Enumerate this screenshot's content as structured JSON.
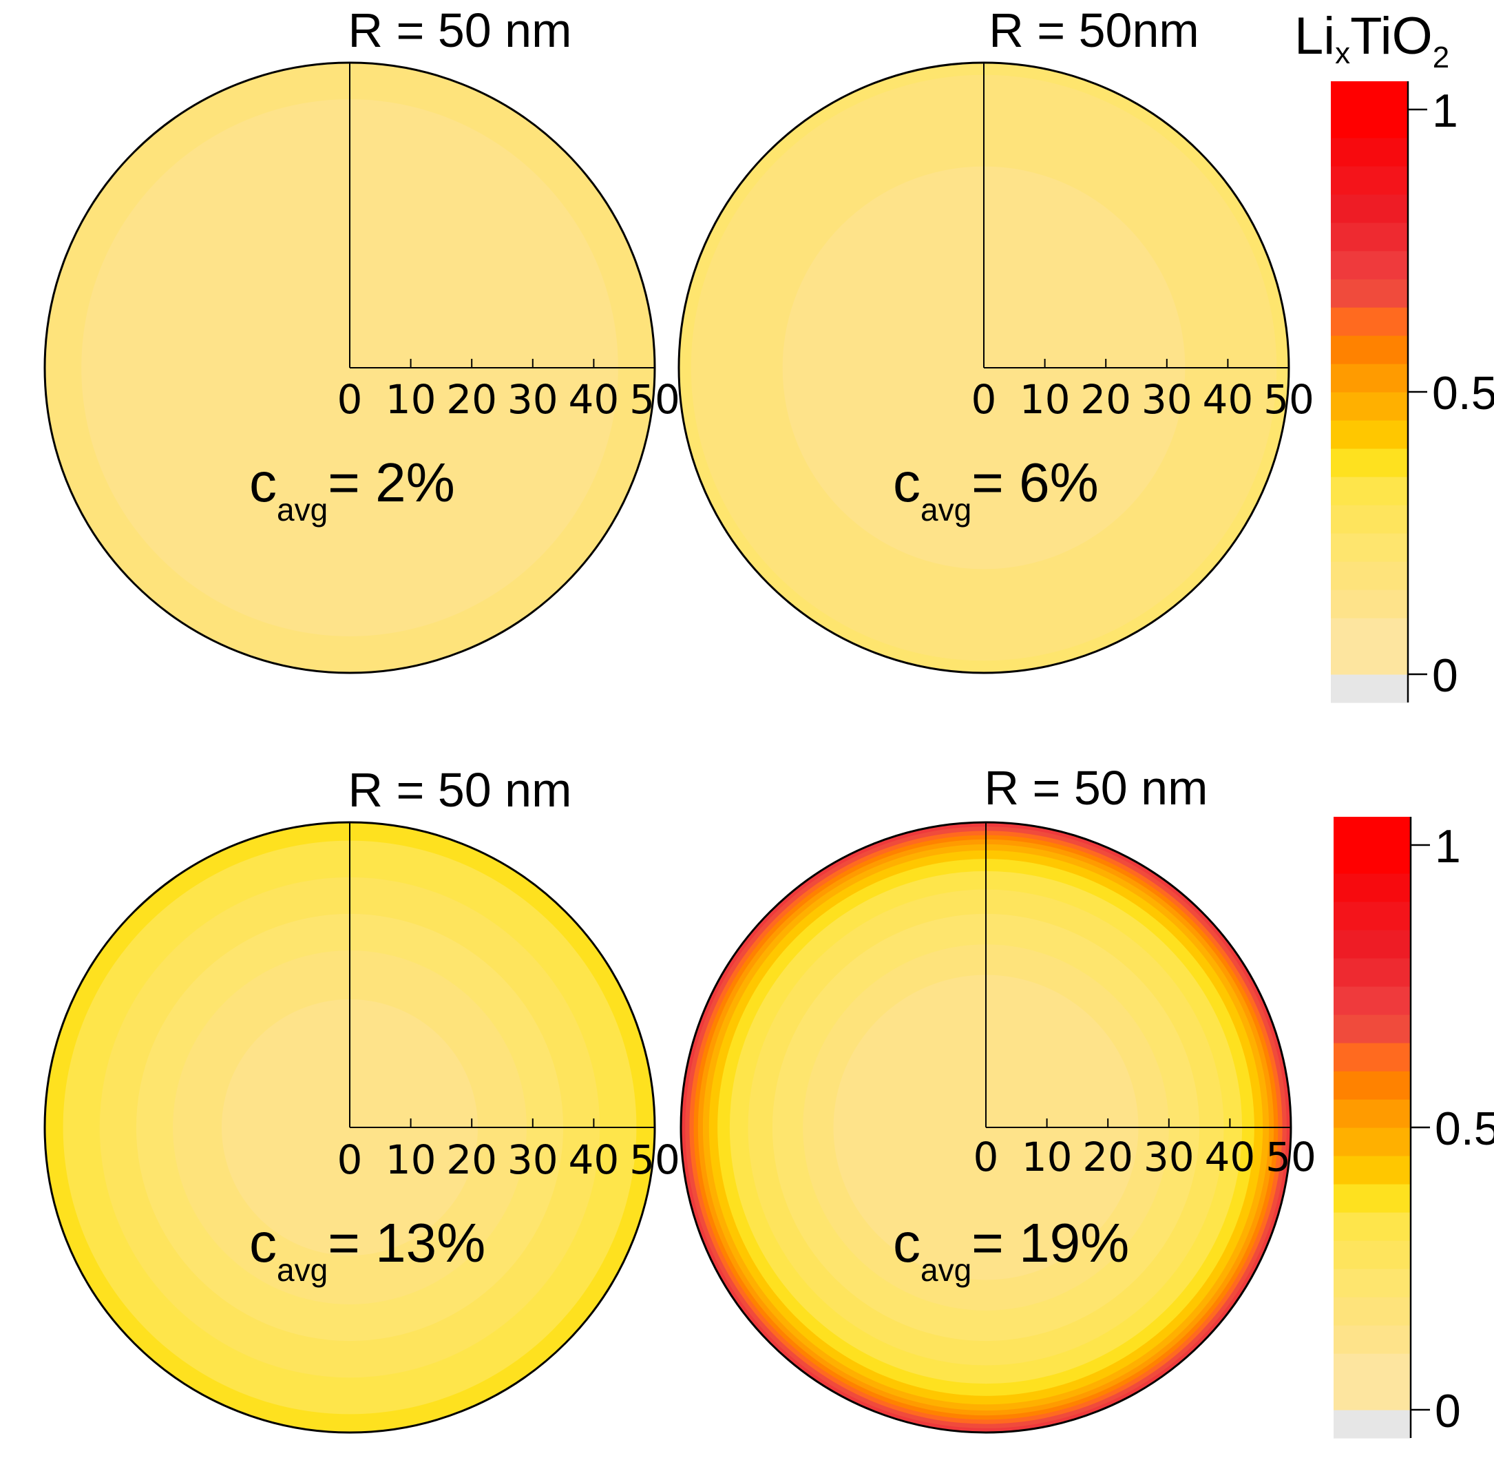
{
  "figure_title": {
    "base": "Li",
    "sub_x": "x",
    "mid": "TiO",
    "sub_2": "2"
  },
  "chart_data": [
    {
      "type": "heatmap",
      "title": "R = 50 nm",
      "radius": 50,
      "xticks": [
        "0",
        "10",
        "20",
        "30",
        "40",
        "50"
      ],
      "annotation": {
        "label": "c",
        "sub": "avg",
        "value": "= 2%"
      },
      "rings": [
        {
          "r_outer": 50,
          "value": 0.15
        },
        {
          "r_outer": 44,
          "value": 0.1
        }
      ]
    },
    {
      "type": "heatmap",
      "title": "R = 50nm",
      "radius": 50,
      "xticks": [
        "0",
        "10",
        "20",
        "30",
        "40",
        "50"
      ],
      "annotation": {
        "label": "c",
        "sub": "avg",
        "value": "= 6%"
      },
      "rings": [
        {
          "r_outer": 50,
          "value": 0.2
        },
        {
          "r_outer": 48,
          "value": 0.15
        },
        {
          "r_outer": 33,
          "value": 0.1
        }
      ]
    },
    {
      "type": "heatmap",
      "title": "R = 50 nm",
      "radius": 50,
      "xticks": [
        "0",
        "10",
        "20",
        "30",
        "40",
        "50"
      ],
      "annotation": {
        "label": "c",
        "sub": "avg",
        "value": "= 13%"
      },
      "rings": [
        {
          "r_outer": 50,
          "value": 0.35
        },
        {
          "r_outer": 47,
          "value": 0.3
        },
        {
          "r_outer": 41,
          "value": 0.25
        },
        {
          "r_outer": 35,
          "value": 0.2
        },
        {
          "r_outer": 29,
          "value": 0.15
        },
        {
          "r_outer": 21,
          "value": 0.1
        }
      ]
    },
    {
      "type": "heatmap",
      "title": "R = 50 nm",
      "radius": 50,
      "xticks": [
        "0",
        "10",
        "20",
        "30",
        "40",
        "50"
      ],
      "annotation": {
        "label": "c",
        "sub": "avg",
        "value": "= 19%"
      },
      "rings": [
        {
          "r_outer": 50,
          "value": 0.7
        },
        {
          "r_outer": 49.3,
          "value": 0.65
        },
        {
          "r_outer": 48.6,
          "value": 0.6
        },
        {
          "r_outer": 47.9,
          "value": 0.55
        },
        {
          "r_outer": 47.2,
          "value": 0.5
        },
        {
          "r_outer": 46.4,
          "value": 0.45
        },
        {
          "r_outer": 45.4,
          "value": 0.4
        },
        {
          "r_outer": 44,
          "value": 0.35
        },
        {
          "r_outer": 42,
          "value": 0.3
        },
        {
          "r_outer": 39,
          "value": 0.25
        },
        {
          "r_outer": 35,
          "value": 0.2
        },
        {
          "r_outer": 30,
          "value": 0.15
        },
        {
          "r_outer": 25,
          "value": 0.1
        }
      ]
    }
  ],
  "colorbar": {
    "ticks": [
      "0",
      "0.5",
      "1"
    ],
    "tick_values": [
      0,
      0.5,
      1
    ],
    "range": [
      -0.05,
      1.05
    ],
    "bins": [
      {
        "from": -0.05,
        "to": 0.0,
        "color": "#e6e6e6"
      },
      {
        "from": 0.0,
        "to": 0.05,
        "color": "#fde59f"
      },
      {
        "from": 0.05,
        "to": 0.1,
        "color": "#fde59f"
      },
      {
        "from": 0.1,
        "to": 0.15,
        "color": "#fee38a"
      },
      {
        "from": 0.15,
        "to": 0.2,
        "color": "#fee37b"
      },
      {
        "from": 0.2,
        "to": 0.25,
        "color": "#fee56e"
      },
      {
        "from": 0.25,
        "to": 0.3,
        "color": "#fee45d"
      },
      {
        "from": 0.3,
        "to": 0.35,
        "color": "#fee54b"
      },
      {
        "from": 0.35,
        "to": 0.4,
        "color": "#fee11f"
      },
      {
        "from": 0.4,
        "to": 0.45,
        "color": "#ffc700"
      },
      {
        "from": 0.45,
        "to": 0.5,
        "color": "#ffb000"
      },
      {
        "from": 0.5,
        "to": 0.55,
        "color": "#ff9b00"
      },
      {
        "from": 0.55,
        "to": 0.6,
        "color": "#ff8200"
      },
      {
        "from": 0.6,
        "to": 0.65,
        "color": "#ff6a1f"
      },
      {
        "from": 0.65,
        "to": 0.7,
        "color": "#f04b3c"
      },
      {
        "from": 0.7,
        "to": 0.75,
        "color": "#ef3a3c"
      },
      {
        "from": 0.75,
        "to": 0.8,
        "color": "#ee2a30"
      },
      {
        "from": 0.8,
        "to": 0.85,
        "color": "#ee1c25"
      },
      {
        "from": 0.85,
        "to": 0.9,
        "color": "#f4141a"
      },
      {
        "from": 0.9,
        "to": 0.95,
        "color": "#f70a0e"
      },
      {
        "from": 0.95,
        "to": 1.05,
        "color": "#ff0000"
      }
    ]
  }
}
